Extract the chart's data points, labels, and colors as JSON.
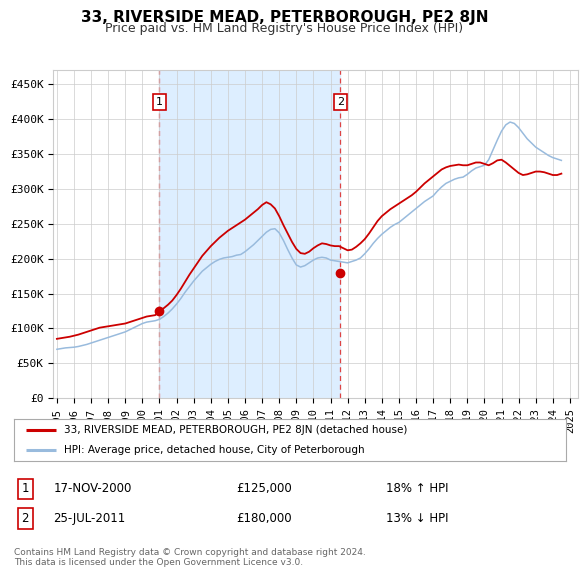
{
  "title": "33, RIVERSIDE MEAD, PETERBOROUGH, PE2 8JN",
  "subtitle": "Price paid vs. HM Land Registry's House Price Index (HPI)",
  "ylabel_ticks": [
    "£0",
    "£50K",
    "£100K",
    "£150K",
    "£200K",
    "£250K",
    "£300K",
    "£350K",
    "£400K",
    "£450K"
  ],
  "ytick_values": [
    0,
    50000,
    100000,
    150000,
    200000,
    250000,
    300000,
    350000,
    400000,
    450000
  ],
  "ylim": [
    0,
    470000
  ],
  "xlim_start": 1994.8,
  "xlim_end": 2025.5,
  "sale1_x": 2001.0,
  "sale1_y": 125000,
  "sale2_x": 2011.58,
  "sale2_y": 180000,
  "red_line_color": "#cc0000",
  "blue_line_color": "#99bbdd",
  "shade_color": "#ddeeff",
  "dashed_line_color": "#dd4444",
  "background_color": "#ffffff",
  "grid_color": "#cccccc",
  "legend_label_red": "33, RIVERSIDE MEAD, PETERBOROUGH, PE2 8JN (detached house)",
  "legend_label_blue": "HPI: Average price, detached house, City of Peterborough",
  "sale1_date": "17-NOV-2000",
  "sale1_price": "£125,000",
  "sale1_hpi": "18% ↑ HPI",
  "sale2_date": "25-JUL-2011",
  "sale2_price": "£180,000",
  "sale2_hpi": "13% ↓ HPI",
  "footer": "Contains HM Land Registry data © Crown copyright and database right 2024.\nThis data is licensed under the Open Government Licence v3.0.",
  "hpi_years": [
    1995.0,
    1995.25,
    1995.5,
    1995.75,
    1996.0,
    1996.25,
    1996.5,
    1996.75,
    1997.0,
    1997.25,
    1997.5,
    1997.75,
    1998.0,
    1998.25,
    1998.5,
    1998.75,
    1999.0,
    1999.25,
    1999.5,
    1999.75,
    2000.0,
    2000.25,
    2000.5,
    2000.75,
    2001.0,
    2001.25,
    2001.5,
    2001.75,
    2002.0,
    2002.25,
    2002.5,
    2002.75,
    2003.0,
    2003.25,
    2003.5,
    2003.75,
    2004.0,
    2004.25,
    2004.5,
    2004.75,
    2005.0,
    2005.25,
    2005.5,
    2005.75,
    2006.0,
    2006.25,
    2006.5,
    2006.75,
    2007.0,
    2007.25,
    2007.5,
    2007.75,
    2008.0,
    2008.25,
    2008.5,
    2008.75,
    2009.0,
    2009.25,
    2009.5,
    2009.75,
    2010.0,
    2010.25,
    2010.5,
    2010.75,
    2011.0,
    2011.25,
    2011.5,
    2011.75,
    2012.0,
    2012.25,
    2012.5,
    2012.75,
    2013.0,
    2013.25,
    2013.5,
    2013.75,
    2014.0,
    2014.25,
    2014.5,
    2014.75,
    2015.0,
    2015.25,
    2015.5,
    2015.75,
    2016.0,
    2016.25,
    2016.5,
    2016.75,
    2017.0,
    2017.25,
    2017.5,
    2017.75,
    2018.0,
    2018.25,
    2018.5,
    2018.75,
    2019.0,
    2019.25,
    2019.5,
    2019.75,
    2020.0,
    2020.25,
    2020.5,
    2020.75,
    2021.0,
    2021.25,
    2021.5,
    2021.75,
    2022.0,
    2022.25,
    2022.5,
    2022.75,
    2023.0,
    2023.25,
    2023.5,
    2023.75,
    2024.0,
    2024.25,
    2024.5
  ],
  "hpi_values": [
    70000,
    71000,
    72000,
    72500,
    73000,
    74000,
    75500,
    77000,
    79000,
    81000,
    83000,
    85000,
    87000,
    89000,
    91000,
    93000,
    95000,
    98000,
    101000,
    104000,
    107000,
    109000,
    110000,
    111000,
    113000,
    117000,
    122000,
    128000,
    135000,
    143000,
    152000,
    160000,
    168000,
    175000,
    182000,
    187000,
    192000,
    196000,
    199000,
    201000,
    202000,
    203000,
    205000,
    206000,
    210000,
    215000,
    220000,
    226000,
    232000,
    238000,
    242000,
    243000,
    237000,
    226000,
    213000,
    201000,
    191000,
    188000,
    190000,
    194000,
    198000,
    201000,
    202000,
    201000,
    198000,
    197000,
    196000,
    195000,
    194000,
    196000,
    198000,
    201000,
    207000,
    214000,
    222000,
    229000,
    235000,
    240000,
    245000,
    249000,
    252000,
    257000,
    262000,
    267000,
    272000,
    277000,
    282000,
    286000,
    290000,
    297000,
    303000,
    308000,
    311000,
    314000,
    316000,
    317000,
    321000,
    326000,
    330000,
    332000,
    334000,
    342000,
    356000,
    370000,
    383000,
    392000,
    396000,
    394000,
    388000,
    380000,
    372000,
    366000,
    360000,
    356000,
    352000,
    348000,
    345000,
    343000,
    341000
  ],
  "red_years": [
    1995.0,
    1995.25,
    1995.5,
    1995.75,
    1996.0,
    1996.25,
    1996.5,
    1996.75,
    1997.0,
    1997.25,
    1997.5,
    1997.75,
    1998.0,
    1998.25,
    1998.5,
    1998.75,
    1999.0,
    1999.25,
    1999.5,
    1999.75,
    2000.0,
    2000.25,
    2000.5,
    2000.75,
    2001.0,
    2001.25,
    2001.5,
    2001.75,
    2002.0,
    2002.25,
    2002.5,
    2002.75,
    2003.0,
    2003.25,
    2003.5,
    2003.75,
    2004.0,
    2004.25,
    2004.5,
    2004.75,
    2005.0,
    2005.25,
    2005.5,
    2005.75,
    2006.0,
    2006.25,
    2006.5,
    2006.75,
    2007.0,
    2007.25,
    2007.5,
    2007.75,
    2008.0,
    2008.25,
    2008.5,
    2008.75,
    2009.0,
    2009.25,
    2009.5,
    2009.75,
    2010.0,
    2010.25,
    2010.5,
    2010.75,
    2011.0,
    2011.25,
    2011.5,
    2011.75,
    2012.0,
    2012.25,
    2012.5,
    2012.75,
    2013.0,
    2013.25,
    2013.5,
    2013.75,
    2014.0,
    2014.25,
    2014.5,
    2014.75,
    2015.0,
    2015.25,
    2015.5,
    2015.75,
    2016.0,
    2016.25,
    2016.5,
    2016.75,
    2017.0,
    2017.25,
    2017.5,
    2017.75,
    2018.0,
    2018.25,
    2018.5,
    2018.75,
    2019.0,
    2019.25,
    2019.5,
    2019.75,
    2020.0,
    2020.25,
    2020.5,
    2020.75,
    2021.0,
    2021.25,
    2021.5,
    2021.75,
    2022.0,
    2022.25,
    2022.5,
    2022.75,
    2023.0,
    2023.25,
    2023.5,
    2023.75,
    2024.0,
    2024.25,
    2024.5
  ],
  "red_values": [
    85000,
    86000,
    87000,
    88000,
    89500,
    91000,
    93000,
    95000,
    97000,
    99000,
    101000,
    102000,
    103000,
    104000,
    105000,
    106000,
    107000,
    109000,
    111000,
    113000,
    115000,
    117000,
    118000,
    119000,
    125000,
    129000,
    134000,
    140000,
    148000,
    157000,
    167000,
    177000,
    186000,
    195000,
    204000,
    211000,
    218000,
    224000,
    230000,
    235000,
    240000,
    244000,
    248000,
    252000,
    256000,
    261000,
    266000,
    271000,
    277000,
    281000,
    278000,
    272000,
    261000,
    248000,
    236000,
    224000,
    214000,
    208000,
    207000,
    210000,
    215000,
    219000,
    222000,
    221000,
    219000,
    218000,
    218000,
    215000,
    212000,
    213000,
    217000,
    222000,
    228000,
    236000,
    245000,
    254000,
    261000,
    266000,
    271000,
    275000,
    279000,
    283000,
    287000,
    291000,
    296000,
    302000,
    308000,
    313000,
    318000,
    323000,
    328000,
    331000,
    333000,
    334000,
    335000,
    334000,
    334000,
    336000,
    338000,
    338000,
    336000,
    334000,
    337000,
    341000,
    342000,
    338000,
    333000,
    328000,
    323000,
    320000,
    321000,
    323000,
    325000,
    325000,
    324000,
    322000,
    320000,
    320000,
    322000
  ],
  "xtick_years": [
    1995,
    1996,
    1997,
    1998,
    1999,
    2000,
    2001,
    2002,
    2003,
    2004,
    2005,
    2006,
    2007,
    2008,
    2009,
    2010,
    2011,
    2012,
    2013,
    2014,
    2015,
    2016,
    2017,
    2018,
    2019,
    2020,
    2021,
    2022,
    2023,
    2024,
    2025
  ]
}
